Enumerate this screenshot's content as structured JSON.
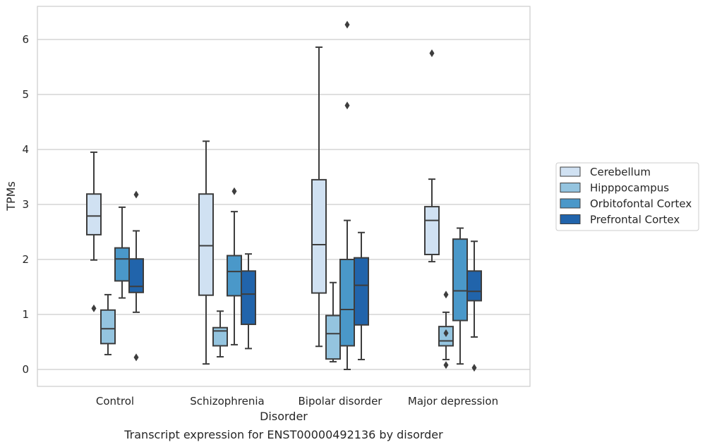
{
  "chart_data": {
    "type": "box",
    "title": "",
    "caption": "Transcript expression for ENST00000492136 by disorder",
    "xlabel": "Disorder",
    "ylabel": "TPMs",
    "ylim": [
      -0.3,
      6.6
    ],
    "yticks": [
      0,
      1,
      2,
      3,
      4,
      5,
      6
    ],
    "grid": "horizontal",
    "legend_position": "right",
    "categories": [
      "Control",
      "Schizophrenia",
      "Bipolar disorder",
      "Major depression"
    ],
    "series": [
      {
        "name": "Cerebellum",
        "color": "#d0e1f2",
        "boxes": [
          {
            "whislo": 1.99,
            "q1": 2.45,
            "med": 2.79,
            "q3": 3.19,
            "whishi": 3.95,
            "fliers": [
              1.11
            ]
          },
          {
            "whislo": 0.1,
            "q1": 1.35,
            "med": 2.25,
            "q3": 3.19,
            "whishi": 4.15,
            "fliers": []
          },
          {
            "whislo": 0.42,
            "q1": 1.39,
            "med": 2.27,
            "q3": 3.45,
            "whishi": 5.86,
            "fliers": []
          },
          {
            "whislo": 1.96,
            "q1": 2.09,
            "med": 2.71,
            "q3": 2.96,
            "whishi": 3.46,
            "fliers": [
              5.75
            ]
          }
        ]
      },
      {
        "name": "Hipppocampus",
        "color": "#94c4df",
        "boxes": [
          {
            "whislo": 0.27,
            "q1": 0.47,
            "med": 0.74,
            "q3": 1.08,
            "whishi": 1.36,
            "fliers": []
          },
          {
            "whislo": 0.23,
            "q1": 0.43,
            "med": 0.7,
            "q3": 0.76,
            "whishi": 1.06,
            "fliers": []
          },
          {
            "whislo": 0.14,
            "q1": 0.19,
            "med": 0.65,
            "q3": 0.98,
            "whishi": 1.58,
            "fliers": []
          },
          {
            "whislo": 0.18,
            "q1": 0.43,
            "med": 0.52,
            "q3": 0.78,
            "whishi": 1.04,
            "fliers": [
              0.66,
              0.08,
              1.36
            ]
          }
        ]
      },
      {
        "name": "Orbitofontal Cortex",
        "color": "#4a98c9",
        "boxes": [
          {
            "whislo": 1.3,
            "q1": 1.61,
            "med": 2.01,
            "q3": 2.21,
            "whishi": 2.95,
            "fliers": []
          },
          {
            "whislo": 0.45,
            "q1": 1.34,
            "med": 1.78,
            "q3": 2.07,
            "whishi": 2.87,
            "fliers": [
              3.24
            ]
          },
          {
            "whislo": 0.0,
            "q1": 0.43,
            "med": 1.09,
            "q3": 2.0,
            "whishi": 2.71,
            "fliers": [
              4.8,
              6.27
            ]
          },
          {
            "whislo": 0.1,
            "q1": 0.89,
            "med": 1.43,
            "q3": 2.37,
            "whishi": 2.57,
            "fliers": []
          }
        ]
      },
      {
        "name": "Prefrontal Cortex",
        "color": "#2164ab",
        "boxes": [
          {
            "whislo": 1.04,
            "q1": 1.4,
            "med": 1.51,
            "q3": 2.01,
            "whishi": 2.52,
            "fliers": [
              3.18,
              0.22
            ]
          },
          {
            "whislo": 0.38,
            "q1": 0.82,
            "med": 1.37,
            "q3": 1.79,
            "whishi": 2.1,
            "fliers": []
          },
          {
            "whislo": 0.18,
            "q1": 0.81,
            "med": 1.53,
            "q3": 2.03,
            "whishi": 2.49,
            "fliers": []
          },
          {
            "whislo": 0.59,
            "q1": 1.25,
            "med": 1.42,
            "q3": 1.79,
            "whishi": 2.33,
            "fliers": [
              0.03
            ]
          }
        ]
      }
    ]
  }
}
